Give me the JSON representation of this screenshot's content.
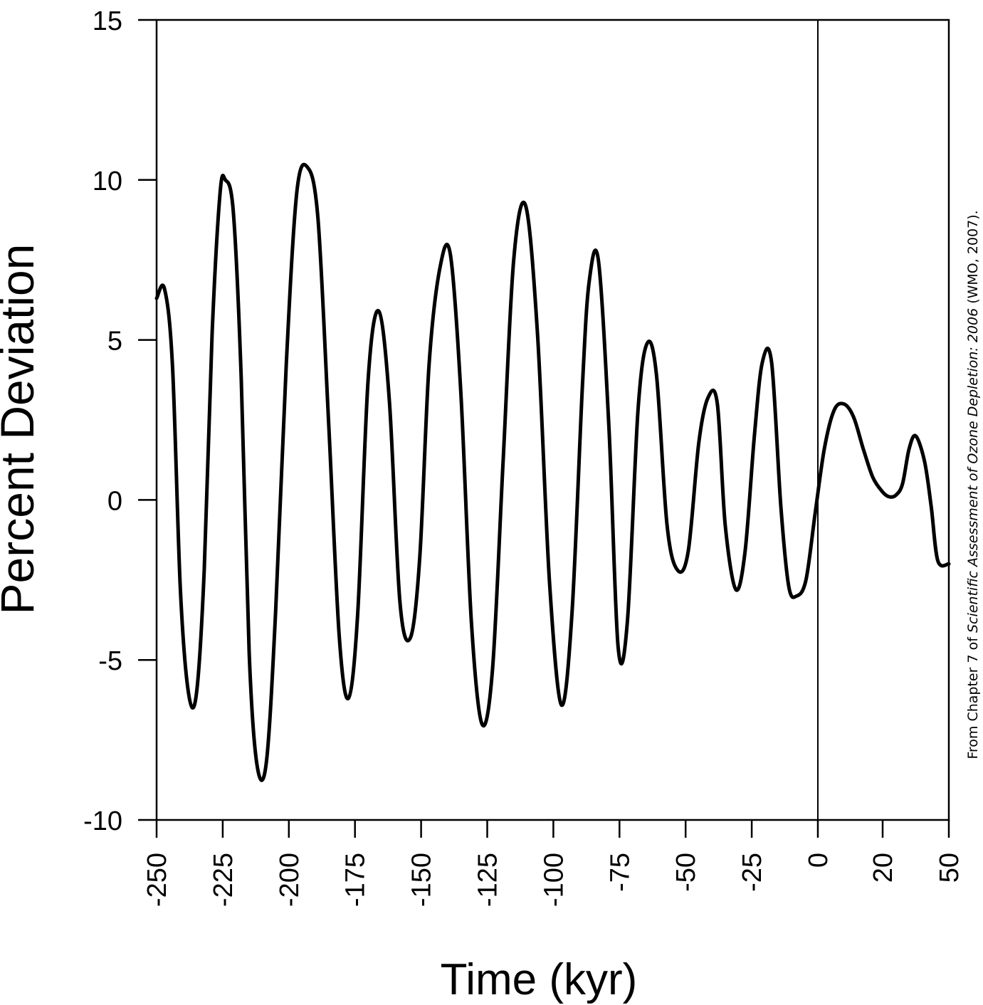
{
  "chart_data": {
    "type": "line",
    "xlabel": "Time (kyr)",
    "ylabel": "Percent Deviation",
    "ylim": [
      -10,
      15
    ],
    "y_ticks": [
      "15",
      "10",
      "5",
      "0",
      "-5",
      "-10"
    ],
    "x_ticks": [
      "-250",
      "-225",
      "-200",
      "-175",
      "-150",
      "-125",
      "-100",
      "-75",
      "-50",
      "-25",
      "0",
      "20",
      "50"
    ],
    "grid": false,
    "vertical_line_at": "0",
    "credit": {
      "prefix": "From Chapter 7 of ",
      "title": "Scientific Assessment of Ozone Depletion: 2006",
      "suffix": " (WMO, 2007)."
    },
    "series": [
      {
        "color": "#000000",
        "x": [
          -250,
          -247,
          -244,
          -241,
          -238,
          -235,
          -232,
          -229,
          -226,
          -224,
          -221,
          -218,
          -215,
          -212,
          -208.5,
          -205,
          -201,
          -197,
          -193,
          -189,
          -185,
          -181,
          -177.5,
          -174,
          -170,
          -166,
          -162,
          -158,
          -154,
          -150.5,
          -147,
          -143,
          -139,
          -135,
          -131,
          -127,
          -123,
          -119,
          -115,
          -110.5,
          -106,
          -101.5,
          -97,
          -93,
          -89,
          -86.5,
          -83,
          -79,
          -75.5,
          -72,
          -68,
          -64.5,
          -61,
          -57,
          -53,
          -49,
          -45,
          -41.5,
          -38,
          -35,
          -31,
          -27.5,
          -24,
          -21,
          -17.5,
          -14,
          -11,
          -8,
          -4.5,
          -1,
          2,
          5,
          8,
          11,
          14,
          17,
          20,
          23,
          26,
          29,
          32,
          35,
          39,
          42,
          45,
          50
        ],
        "y": [
          6.3,
          6.6,
          4.2,
          -2.8,
          -6.0,
          -6.1,
          -2.2,
          5.2,
          9.6,
          10.0,
          9.0,
          3.8,
          -4.8,
          -8.3,
          -8.2,
          -3.5,
          4.2,
          9.6,
          10.4,
          8.8,
          2.5,
          -4.2,
          -6.2,
          -3.6,
          3.8,
          5.9,
          3.1,
          -3.2,
          -4.3,
          -1.8,
          4.2,
          7.2,
          7.7,
          3.4,
          -3.8,
          -7.0,
          -5.3,
          1.2,
          7.5,
          9.2,
          5.2,
          -2.5,
          -6.4,
          -3.6,
          3.6,
          6.8,
          7.5,
          2.3,
          -4.6,
          -3.8,
          2.8,
          4.9,
          3.9,
          -0.8,
          -2.2,
          -1.6,
          1.8,
          3.2,
          3.0,
          -0.8,
          -2.8,
          -1.6,
          2.0,
          4.3,
          4.3,
          -0.2,
          -2.7,
          -3.0,
          -2.5,
          -0.4,
          1.6,
          2.8,
          3.0,
          2.6,
          1.6,
          0.7,
          0.25,
          0.1,
          0.15,
          0.5,
          1.6,
          2.0,
          1.2,
          -0.2,
          -1.9,
          -2.0
        ]
      }
    ]
  }
}
